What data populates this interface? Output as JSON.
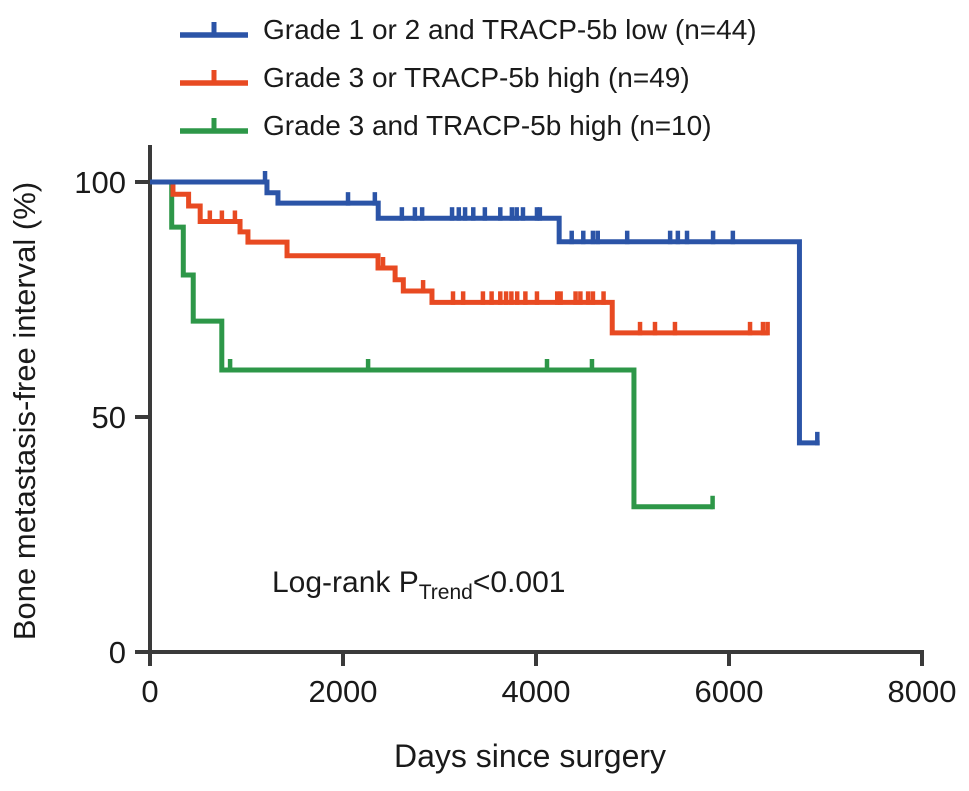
{
  "figure": {
    "background": "#ffffff",
    "text_color": "#1a1a1a",
    "axis_color": "#3a3a3a"
  },
  "annotation": {
    "prefix": "Log-rank P",
    "subscript": "Trend",
    "suffix": "<0.001"
  },
  "chart_data": {
    "type": "line",
    "subtype": "kaplan-meier-step-curve",
    "title": "",
    "xlabel": "Days since surgery",
    "ylabel": "Bone metastasis-free interval (%)",
    "xlim": [
      0,
      8000
    ],
    "ylim": [
      0,
      100
    ],
    "x_ticks": [
      0,
      2000,
      4000,
      6000,
      8000
    ],
    "y_ticks": [
      0,
      50,
      100
    ],
    "grid": false,
    "legend_position": "top-left",
    "series": [
      {
        "name": "Grade 1 or 2 and TRACP-5b low (n=44)",
        "color": "#2b54a7",
        "steps": [
          [
            0,
            100
          ],
          [
            1212,
            97.7
          ],
          [
            1326,
            95.5
          ],
          [
            2365,
            92.3
          ],
          [
            4240,
            87.3
          ],
          [
            6730,
            44.5
          ],
          [
            6940,
            44.5
          ]
        ],
        "censor_marks": [
          [
            1192,
            100
          ],
          [
            2052,
            95.5
          ],
          [
            2330,
            95.5
          ],
          [
            2610,
            92.3
          ],
          [
            2745,
            92.3
          ],
          [
            2820,
            92.3
          ],
          [
            3130,
            92.3
          ],
          [
            3200,
            92.3
          ],
          [
            3265,
            92.3
          ],
          [
            3350,
            92.3
          ],
          [
            3470,
            92.3
          ],
          [
            3630,
            92.3
          ],
          [
            3750,
            92.3
          ],
          [
            3800,
            92.3
          ],
          [
            3865,
            92.3
          ],
          [
            4010,
            92.3
          ],
          [
            4040,
            92.3
          ],
          [
            4370,
            87.3
          ],
          [
            4490,
            87.3
          ],
          [
            4590,
            87.3
          ],
          [
            4640,
            87.3
          ],
          [
            4945,
            87.3
          ],
          [
            5390,
            87.3
          ],
          [
            5470,
            87.3
          ],
          [
            5565,
            87.3
          ],
          [
            5835,
            87.3
          ],
          [
            6040,
            87.3
          ],
          [
            6915,
            44.5
          ]
        ]
      },
      {
        "name": "Grade 3 or TRACP-5b high (n=49)",
        "color": "#e84a22",
        "steps": [
          [
            0,
            100
          ],
          [
            238,
            97.4
          ],
          [
            400,
            94.9
          ],
          [
            520,
            91.6
          ],
          [
            933,
            89.4
          ],
          [
            1015,
            87.2
          ],
          [
            1420,
            84.3
          ],
          [
            2363,
            81.7
          ],
          [
            2540,
            79.2
          ],
          [
            2625,
            76.8
          ],
          [
            2922,
            74.4
          ],
          [
            4790,
            67.9
          ],
          [
            6405,
            67.9
          ]
        ],
        "censor_marks": [
          [
            620,
            91.6
          ],
          [
            745,
            91.6
          ],
          [
            880,
            91.6
          ],
          [
            2415,
            81.7
          ],
          [
            2830,
            76.8
          ],
          [
            3140,
            74.4
          ],
          [
            3245,
            74.4
          ],
          [
            3450,
            74.4
          ],
          [
            3540,
            74.4
          ],
          [
            3630,
            74.4
          ],
          [
            3690,
            74.4
          ],
          [
            3745,
            74.4
          ],
          [
            3805,
            74.4
          ],
          [
            3890,
            74.4
          ],
          [
            4010,
            74.4
          ],
          [
            4220,
            74.4
          ],
          [
            4255,
            74.4
          ],
          [
            4410,
            74.4
          ],
          [
            4460,
            74.4
          ],
          [
            4540,
            74.4
          ],
          [
            4590,
            74.4
          ],
          [
            4700,
            74.4
          ],
          [
            5078,
            67.9
          ],
          [
            5233,
            67.9
          ],
          [
            5440,
            67.9
          ],
          [
            6218,
            67.9
          ],
          [
            6352,
            67.9
          ],
          [
            6400,
            67.9
          ]
        ]
      },
      {
        "name": "Grade 3 and TRACP-5b high (n=10)",
        "color": "#2d9748",
        "steps": [
          [
            0,
            100
          ],
          [
            225,
            90.4
          ],
          [
            345,
            80.2
          ],
          [
            448,
            70.4
          ],
          [
            744,
            60
          ],
          [
            5015,
            30.9
          ],
          [
            5835,
            30.9
          ]
        ],
        "censor_marks": [
          [
            830,
            60
          ],
          [
            2260,
            60
          ],
          [
            4114,
            60
          ],
          [
            4580,
            60
          ],
          [
            5830,
            30.9
          ]
        ]
      }
    ]
  }
}
